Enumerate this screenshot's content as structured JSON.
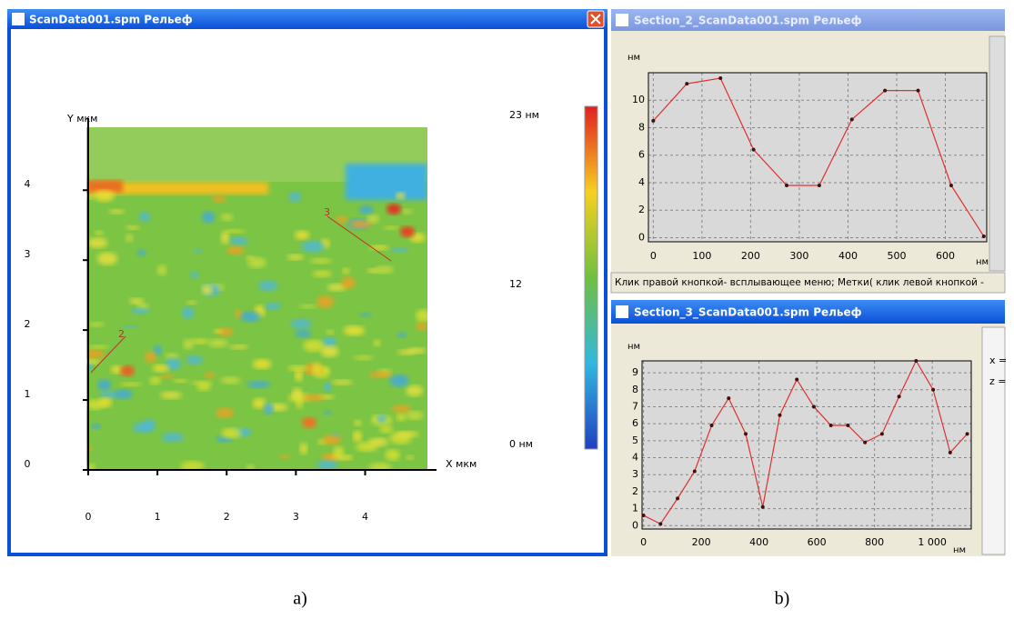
{
  "scan_window": {
    "title": "ScanData001.spm  Рельеф",
    "image": {
      "y_axis_label": "Y мкм",
      "x_axis_label": "X мкм",
      "xlim": [
        0,
        4.9
      ],
      "ylim": [
        0,
        4.9
      ],
      "xticks": [
        0,
        1,
        2,
        3,
        4
      ],
      "yticks": [
        0,
        1,
        2,
        3,
        4
      ],
      "colorbar": {
        "max_label": "23 нм",
        "mid_label": "12",
        "min_label": "0 нм"
      },
      "profile_labels": [
        "2",
        "3"
      ]
    }
  },
  "status_bar": "Клик правой кнопкой-  всплывающее меню; Метки( клик левой кнопкой -",
  "side_panel": [
    "x =",
    "z ="
  ],
  "captions": [
    "a)",
    "b)"
  ],
  "chart_data": [
    {
      "type": "line",
      "title": "Section_2_ScanData001.spm  Рельеф",
      "y_axis_label": "нм",
      "x_axis_label": "нм",
      "x": [
        0,
        69,
        138,
        206,
        274,
        341,
        408,
        476,
        544,
        612,
        679
      ],
      "values": [
        8.5,
        11.2,
        11.6,
        6.4,
        3.8,
        3.8,
        8.6,
        10.7,
        10.7,
        3.8,
        0.1
      ],
      "xlim": [
        -10,
        685
      ],
      "ylim": [
        -0.3,
        12
      ],
      "xticks": [
        0,
        100,
        200,
        300,
        400,
        500,
        600
      ],
      "yticks": [
        0,
        2,
        4,
        6,
        8,
        10
      ],
      "color": "#e03030",
      "marker_color": "#401010",
      "grid": true
    },
    {
      "type": "line",
      "title": "Section_3_ScanData001.spm  Рельеф",
      "y_axis_label": "нм",
      "x_axis_label": "нм",
      "x": [
        0,
        59,
        118,
        177,
        236,
        295,
        354,
        413,
        472,
        531,
        590,
        649,
        708,
        767,
        826,
        885,
        944,
        1003,
        1062,
        1121
      ],
      "values": [
        0.6,
        0.1,
        1.6,
        3.2,
        5.9,
        7.5,
        5.4,
        1.1,
        6.5,
        8.6,
        7.0,
        5.9,
        5.9,
        4.9,
        5.4,
        7.6,
        9.7,
        8.0,
        4.3,
        5.4
      ],
      "xlim": [
        -5,
        1135
      ],
      "ylim": [
        -0.2,
        9.7
      ],
      "xticks": [
        0,
        200,
        400,
        600,
        800,
        {
          "value": 1000,
          "label": "1 000"
        }
      ],
      "yticks": [
        0,
        1,
        2,
        3,
        4,
        5,
        6,
        7,
        8,
        9
      ],
      "color": "#e03030",
      "marker_color": "#401010",
      "grid": true
    }
  ]
}
